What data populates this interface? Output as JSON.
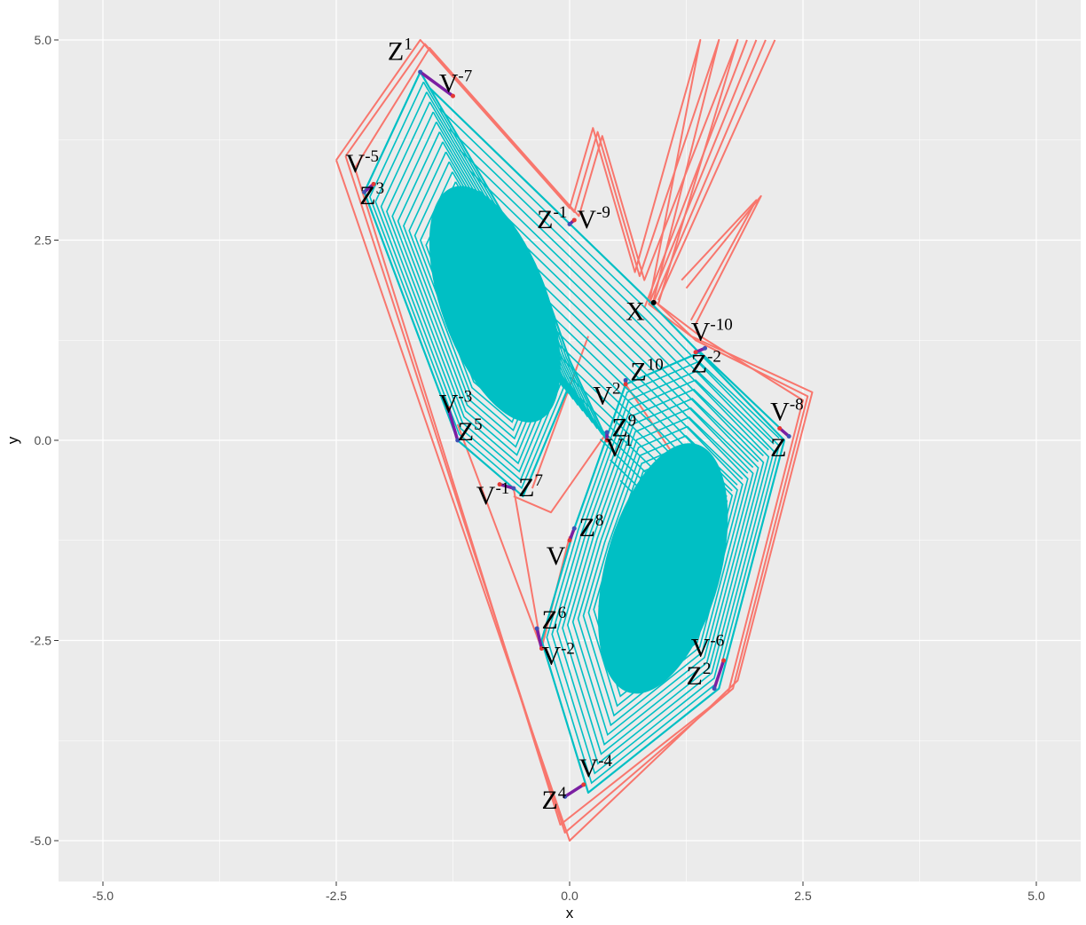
{
  "chart_data": {
    "type": "line",
    "title": "",
    "xlabel": "x",
    "ylabel": "y",
    "xlim": [
      -5.5,
      5.5
    ],
    "ylim": [
      -5.5,
      5.5
    ],
    "x_ticks": [
      -5.0,
      -2.5,
      0.0,
      2.5,
      5.0
    ],
    "y_ticks": [
      -5.0,
      -2.5,
      0.0,
      2.5,
      5.0
    ],
    "x_tick_labels": [
      "-5.0",
      "-2.5",
      "0.0",
      "2.5",
      "5.0"
    ],
    "y_tick_labels": [
      "-5.0",
      "-2.5",
      "0.0",
      "2.5",
      "5.0"
    ],
    "grid": true,
    "legend": "none",
    "colors": {
      "panel": "#ebebeb",
      "grid": "#ffffff",
      "outer_series": "#f8766d",
      "inner_series": "#00bfc4",
      "segment": "#7b1fa2",
      "z_point": "#3f51b5",
      "v_point": "#e53935",
      "x_point": "#000000"
    },
    "series": [
      {
        "role": "outer-trajectories",
        "color": "#f8766d",
        "paths": [
          [
            [
              -2.5,
              3.5
            ],
            [
              -1.6,
              5.0
            ],
            [
              0.0,
              2.9
            ],
            [
              0.25,
              3.9
            ],
            [
              0.7,
              2.1
            ],
            [
              1.4,
              5.0
            ],
            [
              0.85,
              1.7
            ],
            [
              1.3,
              1.3
            ],
            [
              2.6,
              0.6
            ],
            [
              1.8,
              -3.0
            ],
            [
              0.0,
              -5.0
            ],
            [
              -2.5,
              3.5
            ]
          ],
          [
            [
              -2.4,
              3.55
            ],
            [
              -1.55,
              4.95
            ],
            [
              0.05,
              2.85
            ],
            [
              0.3,
              3.85
            ],
            [
              0.75,
              2.05
            ],
            [
              1.6,
              5.0
            ],
            [
              0.9,
              1.75
            ],
            [
              1.35,
              1.25
            ],
            [
              2.55,
              0.55
            ],
            [
              1.75,
              -3.1
            ],
            [
              -0.05,
              -4.9
            ],
            [
              -2.4,
              3.55
            ]
          ],
          [
            [
              -2.3,
              3.4
            ],
            [
              -1.5,
              4.9
            ],
            [
              0.1,
              2.8
            ],
            [
              0.35,
              3.8
            ],
            [
              0.8,
              2.0
            ],
            [
              1.8,
              5.0
            ],
            [
              0.95,
              1.7
            ],
            [
              1.4,
              1.3
            ],
            [
              2.5,
              0.5
            ],
            [
              1.7,
              -3.15
            ],
            [
              -0.1,
              -4.8
            ],
            [
              -2.3,
              3.4
            ]
          ],
          [
            [
              0.85,
              1.7
            ],
            [
              2.0,
              5.0
            ]
          ],
          [
            [
              0.9,
              1.72
            ],
            [
              2.1,
              5.0
            ]
          ],
          [
            [
              0.8,
              1.65
            ],
            [
              1.9,
              5.0
            ]
          ],
          [
            [
              0.95,
              1.75
            ],
            [
              2.2,
              5.0
            ]
          ],
          [
            [
              1.3,
              1.5
            ],
            [
              2.0,
              3.0
            ],
            [
              1.2,
              2.0
            ]
          ],
          [
            [
              1.35,
              1.45
            ],
            [
              2.05,
              3.05
            ],
            [
              1.25,
              1.9
            ]
          ],
          [
            [
              0.4,
              0.1
            ],
            [
              -0.2,
              -0.9
            ],
            [
              -0.6,
              -0.7
            ]
          ],
          [
            [
              0.2,
              1.3
            ],
            [
              -0.4,
              -0.6
            ]
          ],
          [
            [
              0.0,
              -1.2
            ],
            [
              -0.3,
              -2.6
            ],
            [
              -1.2,
              0.2
            ]
          ],
          [
            [
              -0.3,
              -2.6
            ],
            [
              -0.6,
              -0.6
            ]
          ],
          [
            [
              0.6,
              0.7
            ],
            [
              1.3,
              -0.5
            ]
          ]
        ]
      },
      {
        "role": "inner-attractor",
        "color": "#00bfc4",
        "paths": [
          [
            [
              -1.6,
              4.6
            ],
            [
              -2.2,
              3.1
            ],
            [
              -1.2,
              0.0
            ],
            [
              -0.5,
              -0.7
            ],
            [
              0.0,
              0.7
            ],
            [
              0.4,
              0.0
            ],
            [
              0.0,
              1.0
            ],
            [
              -0.3,
              2.0
            ],
            [
              -1.6,
              4.6
            ]
          ],
          [
            [
              -1.5,
              4.4
            ],
            [
              0.8,
              1.8
            ],
            [
              2.3,
              0.0
            ],
            [
              1.6,
              -3.1
            ],
            [
              0.2,
              -4.4
            ],
            [
              -0.3,
              -2.5
            ],
            [
              0.05,
              -1.1
            ],
            [
              0.6,
              0.7
            ],
            [
              1.4,
              1.1
            ],
            [
              2.3,
              0.1
            ]
          ]
        ]
      }
    ],
    "centers": [
      {
        "name": "left-spiral",
        "x": -0.8,
        "y": 1.7
      },
      {
        "name": "right-spiral",
        "x": 1.0,
        "y": -1.6
      }
    ],
    "segments": [
      {
        "z": [
          -1.6,
          4.6
        ],
        "v": [
          -1.25,
          4.3
        ]
      },
      {
        "z": [
          -2.2,
          3.1
        ],
        "v": [
          -2.1,
          3.2
        ]
      },
      {
        "z": [
          0.0,
          2.7
        ],
        "v": [
          0.05,
          2.75
        ]
      },
      {
        "z": [
          1.45,
          1.15
        ],
        "v": [
          1.35,
          1.1
        ]
      },
      {
        "z": [
          0.6,
          0.75
        ],
        "v": [
          0.6,
          0.7
        ]
      },
      {
        "z": [
          0.4,
          0.1
        ],
        "v": [
          0.4,
          0.0
        ]
      },
      {
        "z": [
          -1.2,
          0.0
        ],
        "v": [
          -1.3,
          0.4
        ]
      },
      {
        "z": [
          2.35,
          0.05
        ],
        "v": [
          2.25,
          0.15
        ]
      },
      {
        "z": [
          -0.6,
          -0.6
        ],
        "v": [
          -0.75,
          -0.55
        ]
      },
      {
        "z": [
          0.05,
          -1.1
        ],
        "v": [
          0.0,
          -1.25
        ]
      },
      {
        "z": [
          -0.35,
          -2.35
        ],
        "v": [
          -0.3,
          -2.6
        ]
      },
      {
        "z": [
          1.55,
          -3.1
        ],
        "v": [
          1.65,
          -2.75
        ]
      },
      {
        "z": [
          -0.05,
          -4.45
        ],
        "v": [
          0.15,
          -4.3
        ]
      }
    ],
    "annotations": [
      {
        "base": "Z",
        "sup": "1",
        "x": -1.95,
        "y": 4.75
      },
      {
        "base": "V",
        "sup": "-7",
        "x": -1.4,
        "y": 4.35
      },
      {
        "base": "V",
        "sup": "-5",
        "x": -2.4,
        "y": 3.35
      },
      {
        "base": "Z",
        "sup": "3",
        "x": -2.25,
        "y": 2.95
      },
      {
        "base": "Z",
        "sup": "-1",
        "x": -0.35,
        "y": 2.65
      },
      {
        "base": "V",
        "sup": "-9",
        "x": 0.08,
        "y": 2.65
      },
      {
        "base": "X",
        "sup": "",
        "x": 0.6,
        "y": 1.5
      },
      {
        "base": "V",
        "sup": "-10",
        "x": 1.3,
        "y": 1.25
      },
      {
        "base": "Z",
        "sup": "-2",
        "x": 1.3,
        "y": 0.85
      },
      {
        "base": "Z",
        "sup": "10",
        "x": 0.65,
        "y": 0.75
      },
      {
        "base": "V",
        "sup": "2",
        "x": 0.25,
        "y": 0.45
      },
      {
        "base": "V",
        "sup": "-3",
        "x": -1.4,
        "y": 0.35
      },
      {
        "base": "Z",
        "sup": "5",
        "x": -1.2,
        "y": 0.0
      },
      {
        "base": "Z",
        "sup": "9",
        "x": 0.45,
        "y": 0.05
      },
      {
        "base": "V",
        "sup": "1",
        "x": 0.38,
        "y": -0.2
      },
      {
        "base": "V",
        "sup": "-8",
        "x": 2.15,
        "y": 0.25
      },
      {
        "base": "Z",
        "sup": "",
        "x": 2.15,
        "y": -0.2
      },
      {
        "base": "V",
        "sup": "-1",
        "x": -1.0,
        "y": -0.8
      },
      {
        "base": "Z",
        "sup": "7",
        "x": -0.55,
        "y": -0.7
      },
      {
        "base": "Z",
        "sup": "8",
        "x": 0.1,
        "y": -1.2
      },
      {
        "base": "V",
        "sup": "",
        "x": -0.25,
        "y": -1.55
      },
      {
        "base": "Z",
        "sup": "6",
        "x": -0.3,
        "y": -2.35
      },
      {
        "base": "V",
        "sup": "-2",
        "x": -0.3,
        "y": -2.8
      },
      {
        "base": "V",
        "sup": "-6",
        "x": 1.3,
        "y": -2.7
      },
      {
        "base": "Z",
        "sup": "2",
        "x": 1.25,
        "y": -3.05
      },
      {
        "base": "V",
        "sup": "-4",
        "x": 0.1,
        "y": -4.2
      },
      {
        "base": "Z",
        "sup": "4",
        "x": -0.3,
        "y": -4.6
      }
    ],
    "x_point": {
      "x": 0.9,
      "y": 1.72
    }
  }
}
